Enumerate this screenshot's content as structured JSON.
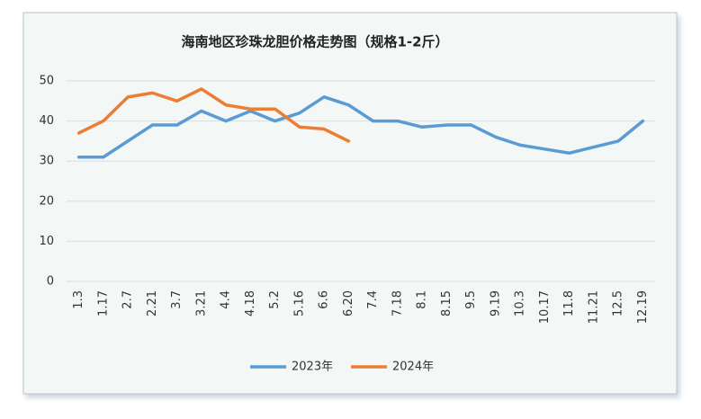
{
  "chart_data": {
    "type": "line",
    "title": "海南地区珍珠龙胆价格走势图（规格1-2斤）",
    "categories": [
      "1.3",
      "1.17",
      "2.7",
      "2.21",
      "3.7",
      "3.21",
      "4.4",
      "4.18",
      "5.2",
      "5.16",
      "6.6",
      "6.20",
      "7.4",
      "7.18",
      "8.1",
      "8.15",
      "9.5",
      "9.19",
      "10.3",
      "10.17",
      "11.8",
      "11.21",
      "12.5",
      "12.19"
    ],
    "series": [
      {
        "name": "2023年",
        "color": "#5b9bd5",
        "values": [
          31,
          31,
          35,
          39,
          39,
          42.5,
          40,
          42.5,
          40,
          42,
          46,
          44,
          40,
          40,
          38.5,
          39,
          39,
          36,
          34,
          33,
          32,
          33.5,
          35,
          40
        ]
      },
      {
        "name": "2024年",
        "color": "#ed7d31",
        "values": [
          37,
          40,
          46,
          47,
          45,
          48,
          44,
          43,
          43,
          38.5,
          38,
          35,
          null,
          null,
          null,
          null,
          null,
          null,
          null,
          null,
          null,
          null,
          null,
          null
        ]
      }
    ],
    "ylim": [
      0,
      50
    ],
    "yticks": [
      0,
      10,
      20,
      30,
      40,
      50
    ],
    "grid": true,
    "legend": "bottom"
  }
}
